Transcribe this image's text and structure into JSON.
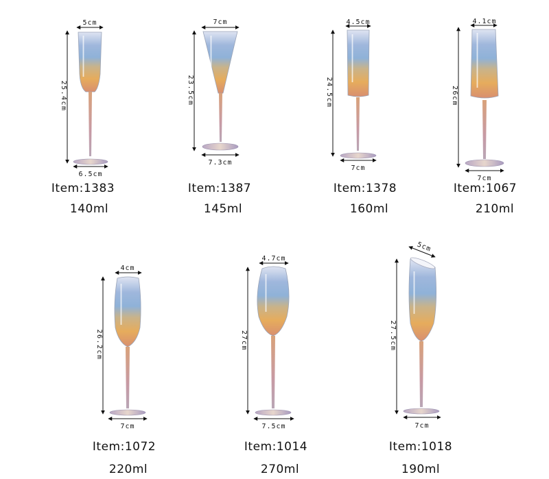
{
  "products": [
    {
      "item": "Item:1383",
      "capacity": "140ml",
      "top_width": "5cm",
      "height": "25.4cm",
      "base_width": "6.5cm"
    },
    {
      "item": "Item:1387",
      "capacity": "145ml",
      "top_width": "7cm",
      "height": "23.5cm",
      "base_width": "7.3cm"
    },
    {
      "item": "Item:1378",
      "capacity": "160ml",
      "top_width": "4.5cm",
      "height": "24.5cm",
      "base_width": "7cm"
    },
    {
      "item": "Item:1067",
      "capacity": "210ml",
      "top_width": "4.1cm",
      "height": "26cm",
      "base_width": "7cm"
    },
    {
      "item": "Item:1072",
      "capacity": "220ml",
      "top_width": "4cm",
      "height": "26.2cm",
      "base_width": "7cm"
    },
    {
      "item": "Item:1014",
      "capacity": "270ml",
      "top_width": "4.7cm",
      "height": "27cm",
      "base_width": "7.5cm"
    },
    {
      "item": "Item:1018",
      "capacity": "190ml",
      "top_width": "5cm",
      "height": "27.5cm",
      "base_width": "7cm"
    }
  ]
}
